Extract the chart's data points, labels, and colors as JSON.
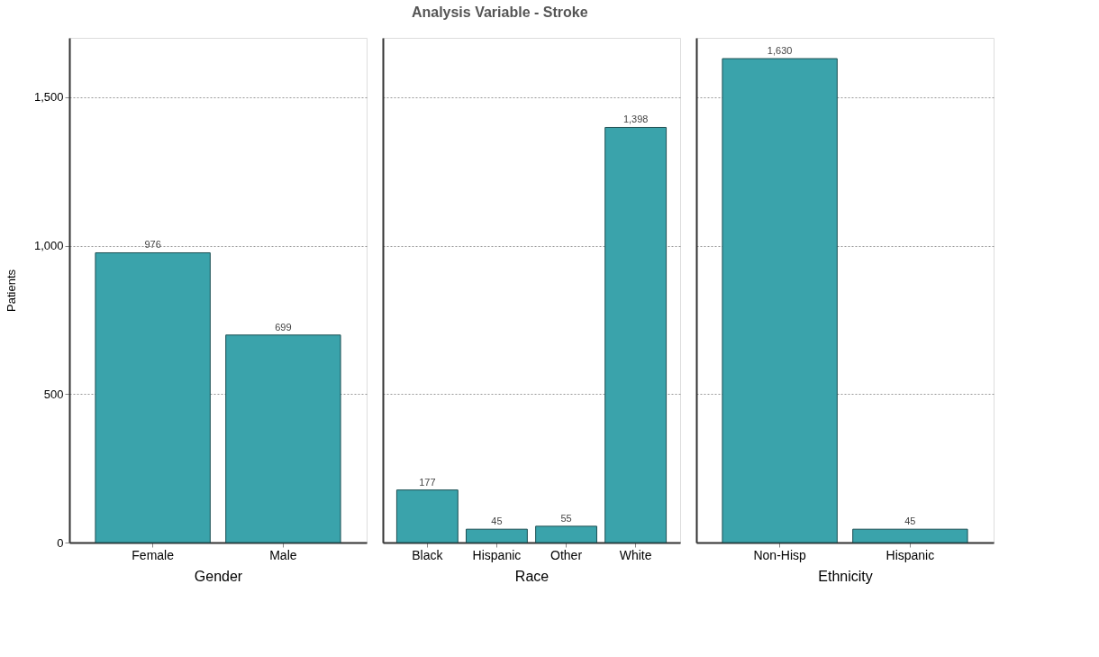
{
  "chart_data": [
    {
      "type": "bar",
      "ylabel": "Patients",
      "xlabel": "Gender",
      "categories": [
        "Female",
        "Male"
      ],
      "values": [
        976,
        699
      ],
      "color": "#3aa3ab",
      "ylim": [
        0,
        1700
      ],
      "yticks": [
        0,
        {
          "value": 500,
          "label": "500"
        },
        {
          "value": 1000,
          "label": "1,000"
        },
        {
          "value": 1500,
          "label": "1,500"
        }
      ],
      "grid": "y",
      "value_labels": [
        "976",
        "699"
      ]
    },
    {
      "type": "bar",
      "title": "Analysis Variable - Stroke",
      "xlabel": "Race",
      "categories": [
        "Black",
        "Hispanic",
        "Other",
        "White"
      ],
      "values": [
        177,
        45,
        55,
        1398
      ],
      "color": "#3aa3ab",
      "ylim": [
        0,
        1700
      ],
      "yticks": [
        0,
        500,
        1000,
        1500
      ],
      "grid": "y",
      "value_labels": [
        "177",
        "45",
        "55",
        "1,398"
      ],
      "tick_labels": "x"
    },
    {
      "type": "bar",
      "xlabel": "Ethnicity",
      "categories": [
        "Non-Hisp",
        "Hispanic"
      ],
      "values": [
        1630,
        45
      ],
      "color": "#3aa3ab",
      "ylim": [
        0,
        1700
      ],
      "yticks": [
        0,
        500,
        1000,
        1500
      ],
      "grid": "y",
      "value_labels": [
        "1,630",
        "45"
      ],
      "tick_labels": "x"
    }
  ]
}
